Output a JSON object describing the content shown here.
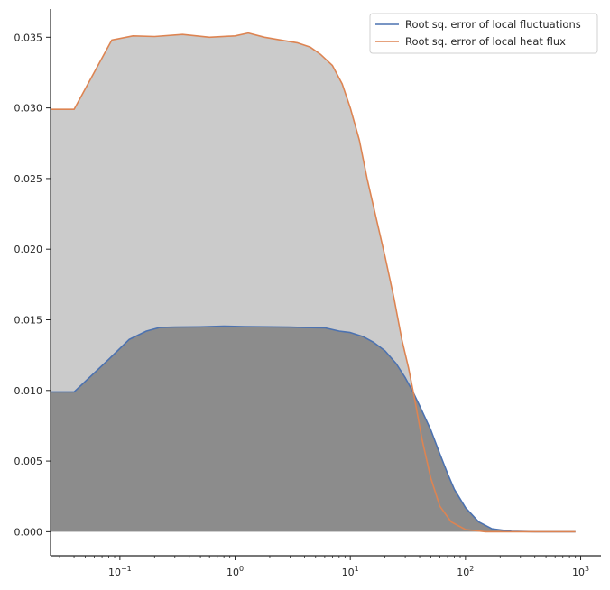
{
  "chart_data": {
    "type": "line",
    "title": "",
    "xlabel": "",
    "ylabel": "",
    "xscale": "log",
    "xlim": [
      0.025,
      1500
    ],
    "ylim": [
      -0.0017,
      0.037
    ],
    "grid": false,
    "legend_position": "top-right",
    "x_ticks": [
      {
        "value": 0.1,
        "base": "10",
        "exp": "−1"
      },
      {
        "value": 1,
        "base": "10",
        "exp": "0"
      },
      {
        "value": 10,
        "base": "10",
        "exp": "1"
      },
      {
        "value": 100,
        "base": "10",
        "exp": "2"
      },
      {
        "value": 1000,
        "base": "10",
        "exp": "3"
      }
    ],
    "y_ticks": [
      {
        "value": 0.0,
        "label": "0.000"
      },
      {
        "value": 0.005,
        "label": "0.005"
      },
      {
        "value": 0.01,
        "label": "0.010"
      },
      {
        "value": 0.015,
        "label": "0.015"
      },
      {
        "value": 0.02,
        "label": "0.020"
      },
      {
        "value": 0.025,
        "label": "0.025"
      },
      {
        "value": 0.03,
        "label": "0.030"
      },
      {
        "value": 0.035,
        "label": "0.035"
      }
    ],
    "series": [
      {
        "name": "Root sq. error of local fluctuations",
        "color": "#4c72b0",
        "fill": "#8c8c8c",
        "points": [
          [
            0.025,
            0.0099
          ],
          [
            0.04,
            0.0099
          ],
          [
            0.08,
            0.0122
          ],
          [
            0.12,
            0.0136
          ],
          [
            0.17,
            0.0142
          ],
          [
            0.22,
            0.01445
          ],
          [
            0.3,
            0.01448
          ],
          [
            0.5,
            0.0145
          ],
          [
            0.8,
            0.01455
          ],
          [
            1.2,
            0.01452
          ],
          [
            2,
            0.0145
          ],
          [
            3,
            0.01448
          ],
          [
            4,
            0.01445
          ],
          [
            6,
            0.01443
          ],
          [
            8,
            0.0142
          ],
          [
            10,
            0.0141
          ],
          [
            13,
            0.0138
          ],
          [
            16,
            0.0134
          ],
          [
            20,
            0.0128
          ],
          [
            25,
            0.0119
          ],
          [
            30,
            0.0109
          ],
          [
            35,
            0.0099
          ],
          [
            40,
            0.0089
          ],
          [
            50,
            0.0072
          ],
          [
            60,
            0.0055
          ],
          [
            70,
            0.0041
          ],
          [
            80,
            0.003
          ],
          [
            100,
            0.0017
          ],
          [
            130,
            0.0007
          ],
          [
            170,
            0.0002
          ],
          [
            250,
            3e-05
          ],
          [
            400,
            0.0
          ],
          [
            900,
            0.0
          ]
        ]
      },
      {
        "name": "Root sq. error of local heat flux",
        "color": "#dd8452",
        "fill": "#cbcbcb",
        "points": [
          [
            0.025,
            0.0299
          ],
          [
            0.04,
            0.0299
          ],
          [
            0.085,
            0.0348
          ],
          [
            0.13,
            0.0351
          ],
          [
            0.2,
            0.03505
          ],
          [
            0.35,
            0.0352
          ],
          [
            0.6,
            0.035
          ],
          [
            1,
            0.0351
          ],
          [
            1.3,
            0.0353
          ],
          [
            1.8,
            0.035
          ],
          [
            2.5,
            0.0348
          ],
          [
            3.5,
            0.0346
          ],
          [
            4.5,
            0.0343
          ],
          [
            5.5,
            0.0338
          ],
          [
            7,
            0.033
          ],
          [
            8.5,
            0.0317
          ],
          [
            10,
            0.03
          ],
          [
            12,
            0.0277
          ],
          [
            14,
            0.025
          ],
          [
            17,
            0.022
          ],
          [
            20,
            0.0195
          ],
          [
            24,
            0.0165
          ],
          [
            28,
            0.0136
          ],
          [
            32,
            0.0116
          ],
          [
            36,
            0.0095
          ],
          [
            42,
            0.0065
          ],
          [
            50,
            0.0038
          ],
          [
            60,
            0.0018
          ],
          [
            75,
            0.0007
          ],
          [
            100,
            0.00015
          ],
          [
            150,
            0.0
          ],
          [
            900,
            0.0
          ]
        ]
      }
    ]
  }
}
